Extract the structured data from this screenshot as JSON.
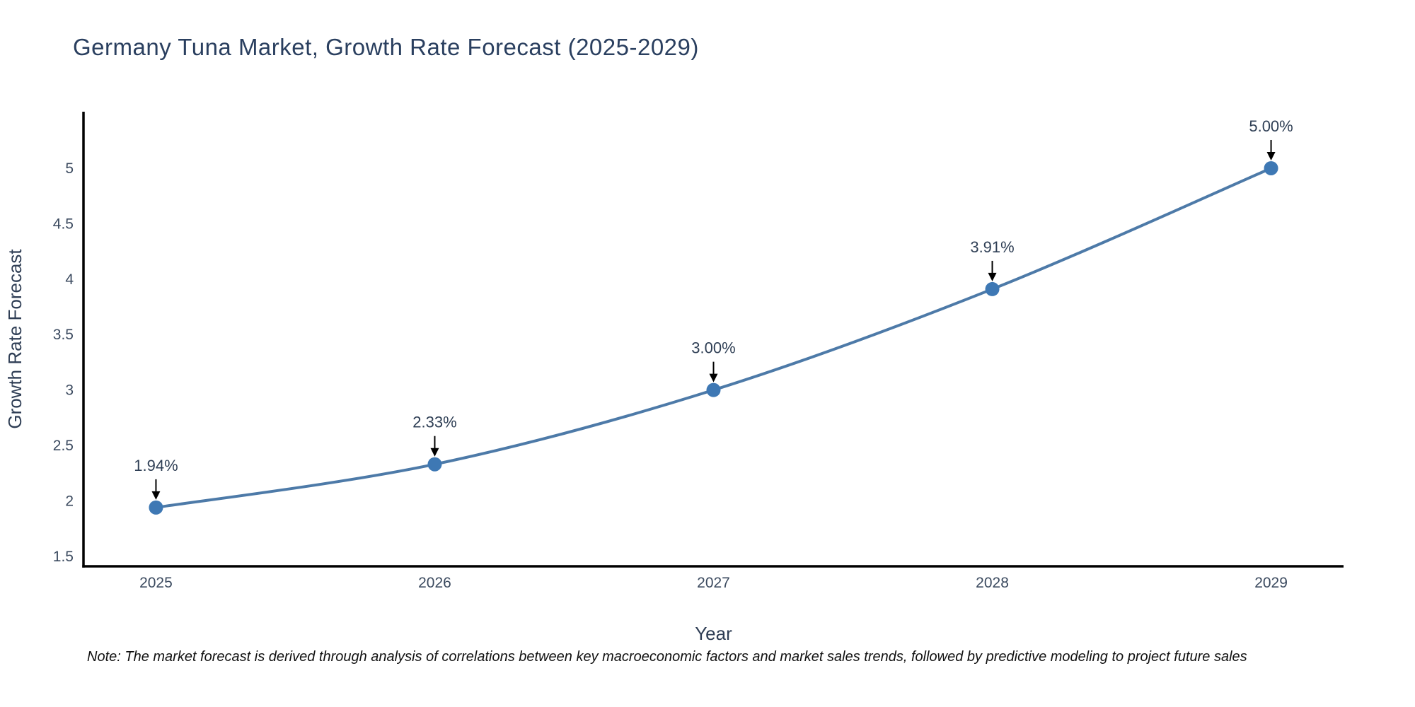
{
  "title": "Germany Tuna Market, Growth Rate Forecast (2025-2029)",
  "note": "Note: The market forecast is derived through analysis of correlations between key macroeconomic factors and market sales trends, followed by predictive modeling to project future sales",
  "colors": {
    "background": "#ffffff",
    "title_text": "#2a3f5f",
    "axis_label_text": "#2e3d54",
    "tick_text": "#3b4a5f",
    "annotation_text": "#2f3f55",
    "axis_line": "#000000",
    "arrow": "#000000",
    "line": "#4d7aa8",
    "marker": "#3e78b4",
    "note_text": "#111111"
  },
  "chart_data": {
    "type": "line",
    "title": "Germany Tuna Market, Growth Rate Forecast (2025-2029)",
    "xlabel": "Year",
    "ylabel": "Growth Rate Forecast",
    "x": [
      2025,
      2026,
      2027,
      2028,
      2029
    ],
    "y": [
      1.94,
      2.33,
      3.0,
      3.91,
      5.0
    ],
    "annotations": [
      "1.94%",
      "2.33%",
      "3.00%",
      "3.91%",
      "5.00%"
    ],
    "x_tick_labels": [
      "2025",
      "2026",
      "2027",
      "2028",
      "2029"
    ],
    "y_ticks": [
      1.5,
      2,
      2.5,
      3,
      3.5,
      4,
      4.5,
      5
    ],
    "xlim": [
      2024.74,
      2029.26
    ],
    "ylim": [
      1.41,
      5.51
    ],
    "grid": false,
    "legend": "none",
    "line_width": 4,
    "marker_size": 10
  }
}
